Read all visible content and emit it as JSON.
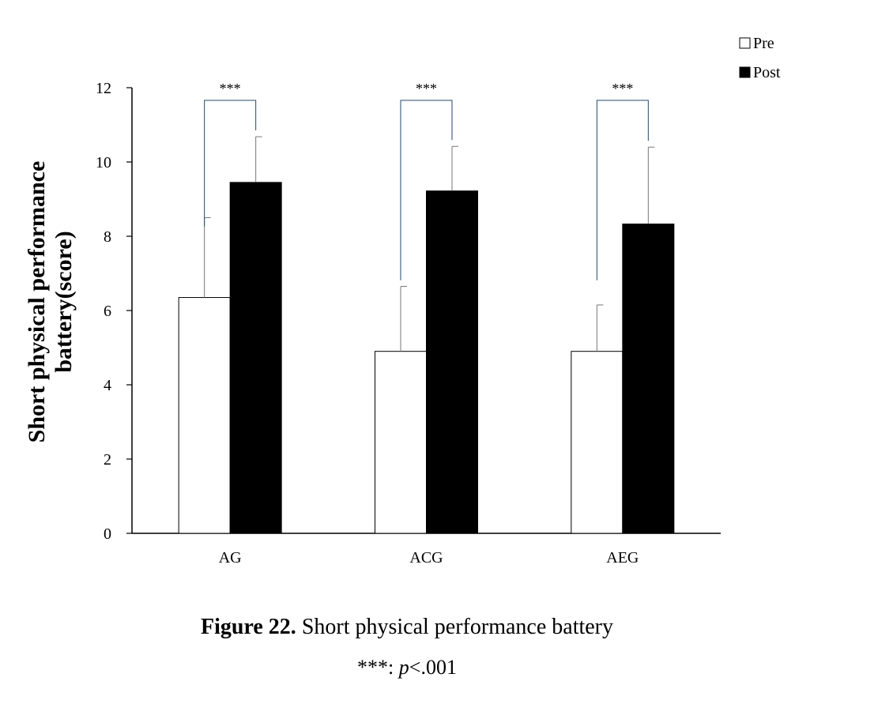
{
  "chart_data": {
    "type": "bar",
    "categories": [
      "AG",
      "ACG",
      "AEG"
    ],
    "series": [
      {
        "name": "Pre",
        "values": [
          6.35,
          4.9,
          4.9
        ],
        "errors": [
          2.15,
          1.75,
          1.25
        ],
        "color": "#ffffff"
      },
      {
        "name": "Post",
        "values": [
          9.45,
          9.22,
          8.33
        ],
        "errors": [
          1.23,
          1.2,
          2.07
        ],
        "color": "#000000"
      }
    ],
    "ylabel": "Short physical performance battery(score)",
    "ylim": [
      0,
      12
    ],
    "yticks": [
      0,
      2,
      4,
      6,
      8,
      10,
      12
    ],
    "significance": [
      "***",
      "***",
      "***"
    ],
    "legend_position": "top-right",
    "grid": false
  },
  "caption": {
    "figure_label": "Figure 22.",
    "text": " Short physical performance battery",
    "note_stars": "***: ",
    "note_p": "p",
    "note_rest": "<.001"
  }
}
